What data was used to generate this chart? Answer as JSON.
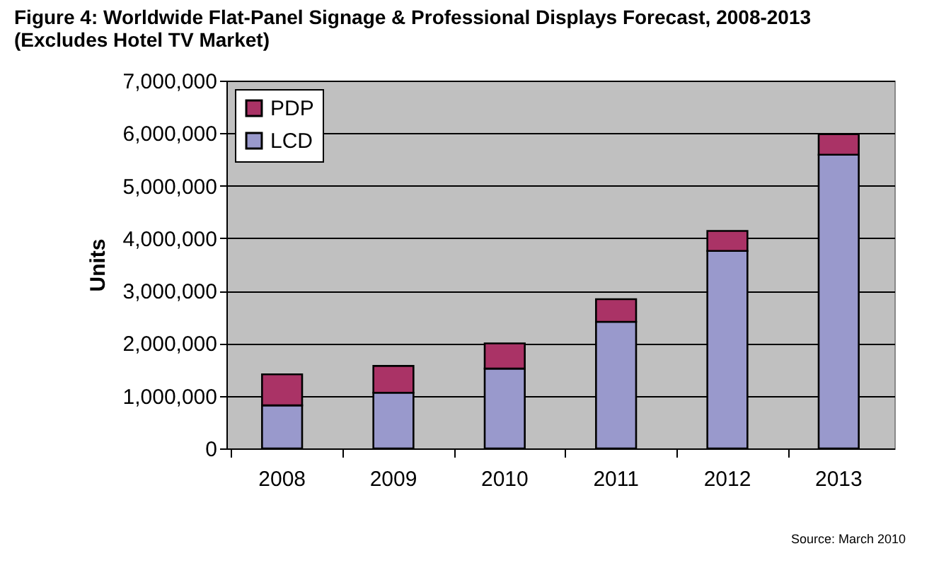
{
  "chart_data": {
    "type": "bar",
    "title": "Figure 4: Worldwide Flat-Panel Signage & Professional Displays Forecast, 2008-2013",
    "subtitle": "(Excludes Hotel TV Market)",
    "ylabel": "Units",
    "categories": [
      "2008",
      "2009",
      "2010",
      "2011",
      "2012",
      "2013"
    ],
    "series": [
      {
        "name": "LCD",
        "color": "#9999cc",
        "values": [
          820000,
          1060000,
          1520000,
          2410000,
          3760000,
          5590000
        ]
      },
      {
        "name": "PDP",
        "color": "#aa3366",
        "values": [
          590000,
          510000,
          480000,
          430000,
          380000,
          390000
        ]
      }
    ],
    "stacked": true,
    "ylim": [
      0,
      7000000
    ],
    "yticks": [
      0,
      {
        "value": 1000000,
        "label": "1,000,000"
      },
      {
        "value": 2000000,
        "label": "2,000,000"
      },
      {
        "value": 3000000,
        "label": "3,000,000"
      },
      {
        "value": 4000000,
        "label": "4,000,000"
      },
      {
        "value": 5000000,
        "label": "5,000,000"
      },
      {
        "value": 6000000,
        "label": "6,000,000"
      },
      {
        "value": 7000000,
        "label": "7,000,000"
      }
    ],
    "grid": "y",
    "legend": "top left",
    "annotations": [
      "Source: March 2010"
    ]
  }
}
